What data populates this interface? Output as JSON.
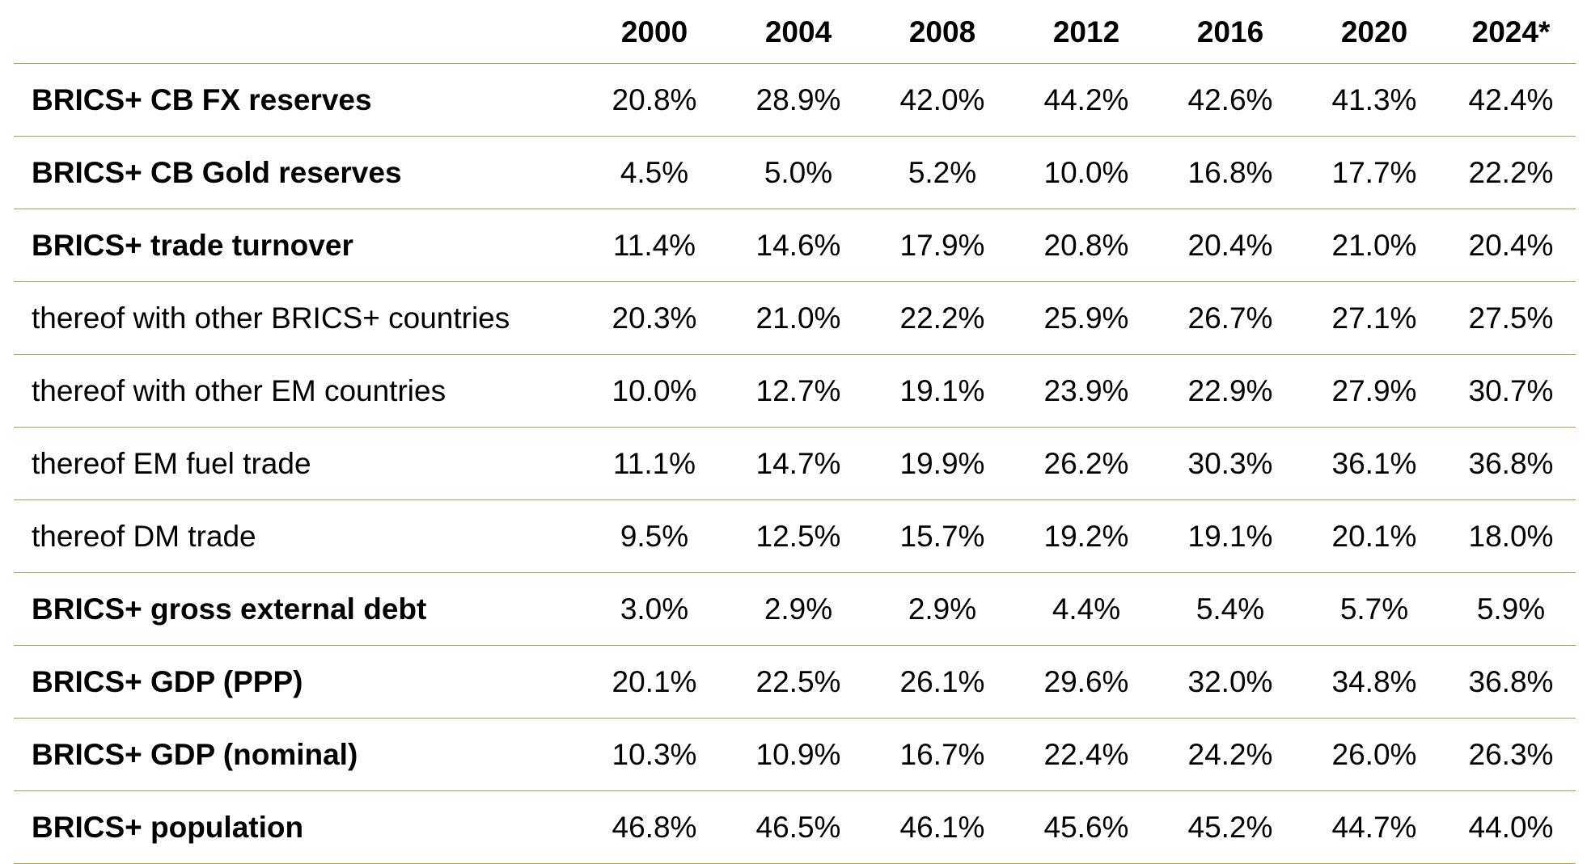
{
  "colors": {
    "rule": "#b39a5e",
    "text": "#000000",
    "background": "#ffffff"
  },
  "chart_data": {
    "type": "table",
    "columns": [
      "2000",
      "2004",
      "2008",
      "2012",
      "2016",
      "2020",
      "2024*"
    ],
    "rows": [
      {
        "label": "BRICS+ CB FX reserves",
        "bold": true,
        "values": [
          "20.8%",
          "28.9%",
          "42.0%",
          "44.2%",
          "42.6%",
          "41.3%",
          "42.4%"
        ]
      },
      {
        "label": "BRICS+ CB Gold reserves",
        "bold": true,
        "values": [
          "4.5%",
          "5.0%",
          "5.2%",
          "10.0%",
          "16.8%",
          "17.7%",
          "22.2%"
        ]
      },
      {
        "label": "BRICS+ trade turnover",
        "bold": true,
        "values": [
          "11.4%",
          "14.6%",
          "17.9%",
          "20.8%",
          "20.4%",
          "21.0%",
          "20.4%"
        ]
      },
      {
        "label": "thereof with other BRICS+ countries",
        "bold": false,
        "values": [
          "20.3%",
          "21.0%",
          "22.2%",
          "25.9%",
          "26.7%",
          "27.1%",
          "27.5%"
        ]
      },
      {
        "label": "thereof with other EM countries",
        "bold": false,
        "values": [
          "10.0%",
          "12.7%",
          "19.1%",
          "23.9%",
          "22.9%",
          "27.9%",
          "30.7%"
        ]
      },
      {
        "label": "thereof EM fuel trade",
        "bold": false,
        "values": [
          "11.1%",
          "14.7%",
          "19.9%",
          "26.2%",
          "30.3%",
          "36.1%",
          "36.8%"
        ]
      },
      {
        "label": "thereof DM trade",
        "bold": false,
        "values": [
          "9.5%",
          "12.5%",
          "15.7%",
          "19.2%",
          "19.1%",
          "20.1%",
          "18.0%"
        ]
      },
      {
        "label": "BRICS+ gross external debt",
        "bold": true,
        "values": [
          "3.0%",
          "2.9%",
          "2.9%",
          "4.4%",
          "5.4%",
          "5.7%",
          "5.9%"
        ]
      },
      {
        "label": "BRICS+ GDP (PPP)",
        "bold": true,
        "values": [
          "20.1%",
          "22.5%",
          "26.1%",
          "29.6%",
          "32.0%",
          "34.8%",
          "36.8%"
        ]
      },
      {
        "label": "BRICS+ GDP (nominal)",
        "bold": true,
        "values": [
          "10.3%",
          "10.9%",
          "16.7%",
          "22.4%",
          "24.2%",
          "26.0%",
          "26.3%"
        ]
      },
      {
        "label": "BRICS+ population",
        "bold": true,
        "values": [
          "46.8%",
          "46.5%",
          "46.1%",
          "45.6%",
          "45.2%",
          "44.7%",
          "44.0%"
        ]
      }
    ]
  }
}
